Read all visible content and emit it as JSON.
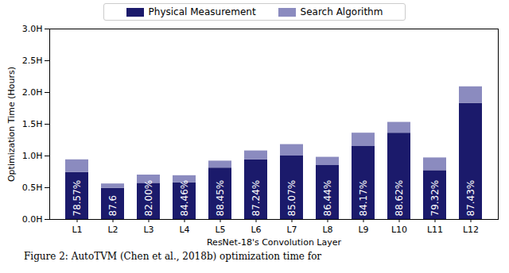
{
  "chart_data": {
    "type": "bar",
    "stacked": true,
    "caption": "Figure 2: AutoTVM (Chen et al., 2018b) optimization time for",
    "x_label": "ResNet-18's Convolution Layer",
    "y_label": "Optimization Time (Hours)",
    "categories": [
      "L1",
      "L2",
      "L3",
      "L4",
      "L5",
      "L6",
      "L7",
      "L8",
      "L9",
      "L10",
      "L11",
      "L12"
    ],
    "series": [
      {
        "name": "Physical Measurement",
        "color": "#1b1a6b",
        "values": [
          0.74,
          0.49,
          0.57,
          0.58,
          0.81,
          0.94,
          1.0,
          0.85,
          1.15,
          1.36,
          0.77,
          1.83
        ]
      },
      {
        "name": "Search Algorithm",
        "color": "#8b8bbf",
        "values": [
          0.2,
          0.07,
          0.13,
          0.11,
          0.11,
          0.14,
          0.18,
          0.13,
          0.21,
          0.17,
          0.2,
          0.26
        ]
      }
    ],
    "annotations": [
      "78.57%",
      "87.6",
      "82.00%",
      "84.46%",
      "88.45%",
      "87.24%",
      "85.07%",
      "86.44%",
      "84.17%",
      "88.62%",
      "79.32%",
      "87.43%"
    ],
    "ylim": [
      0,
      3
    ],
    "yticks": [
      {
        "value": 0,
        "label": "0.0H"
      },
      {
        "value": 0.5,
        "label": "0.5H"
      },
      {
        "value": 1,
        "label": "1.0H"
      },
      {
        "value": 1.5,
        "label": "1.5H"
      },
      {
        "value": 2,
        "label": "2.0H"
      },
      {
        "value": 2.5,
        "label": "2.5H"
      },
      {
        "value": 3,
        "label": "3.0H"
      }
    ],
    "legend": "top",
    "grid": false
  }
}
